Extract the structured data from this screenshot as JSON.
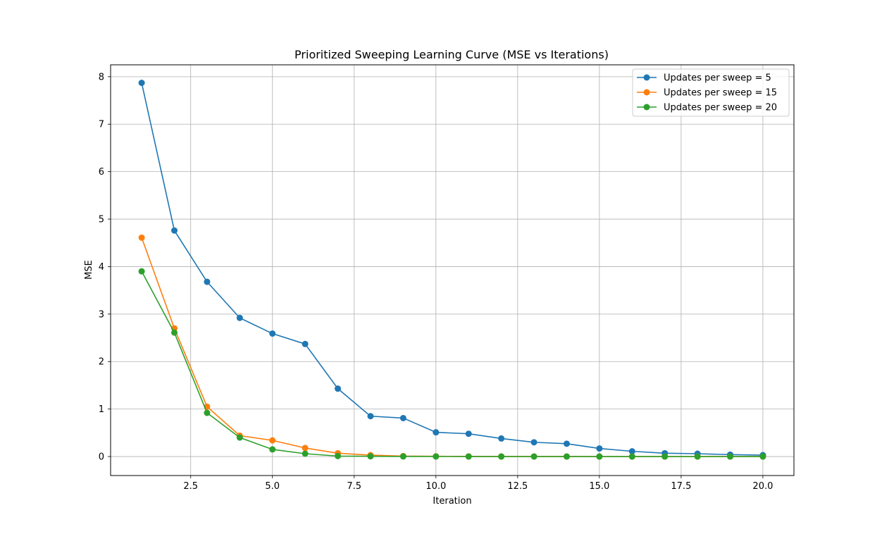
{
  "chart_data": {
    "type": "line",
    "title": "Prioritized Sweeping Learning Curve (MSE vs Iterations)",
    "xlabel": "Iteration",
    "ylabel": "MSE",
    "xlim": [
      0.05,
      20.95
    ],
    "ylim": [
      -0.4,
      8.25
    ],
    "xticks": [
      2.5,
      5.0,
      7.5,
      10.0,
      12.5,
      15.0,
      17.5,
      20.0
    ],
    "xtick_labels": [
      "2.5",
      "5.0",
      "7.5",
      "10.0",
      "12.5",
      "15.0",
      "17.5",
      "20.0"
    ],
    "yticks": [
      0,
      1,
      2,
      3,
      4,
      5,
      6,
      7,
      8
    ],
    "ytick_labels": [
      "0",
      "1",
      "2",
      "3",
      "4",
      "5",
      "6",
      "7",
      "8"
    ],
    "grid": true,
    "legend_position": "top-right",
    "x": [
      1,
      2,
      3,
      4,
      5,
      6,
      7,
      8,
      9,
      10,
      11,
      12,
      13,
      14,
      15,
      16,
      17,
      18,
      19,
      20
    ],
    "series": [
      {
        "name": "Updates per sweep = 5",
        "color": "#1f77b4",
        "values": [
          7.87,
          4.76,
          3.68,
          2.92,
          2.59,
          2.37,
          1.43,
          0.85,
          0.81,
          0.51,
          0.48,
          0.38,
          0.3,
          0.27,
          0.17,
          0.11,
          0.07,
          0.06,
          0.04,
          0.03
        ]
      },
      {
        "name": "Updates per sweep = 15",
        "color": "#ff7f0e",
        "values": [
          4.61,
          2.7,
          1.05,
          0.44,
          0.34,
          0.18,
          0.07,
          0.03,
          0.01,
          0.005,
          0.003,
          0.002,
          0.001,
          0.001,
          0.0,
          0.0,
          0.0,
          0.0,
          0.0,
          0.0
        ]
      },
      {
        "name": "Updates per sweep = 20",
        "color": "#2ca02c",
        "values": [
          3.9,
          2.61,
          0.92,
          0.4,
          0.15,
          0.06,
          0.01,
          0.005,
          0.002,
          0.001,
          0.0,
          0.0,
          0.0,
          0.0,
          0.0,
          0.0,
          0.0,
          0.0,
          0.0,
          0.0
        ]
      }
    ]
  },
  "colors": {
    "grid": "#b0b0b0",
    "axes": "#000000",
    "legend_border": "#cccccc"
  }
}
